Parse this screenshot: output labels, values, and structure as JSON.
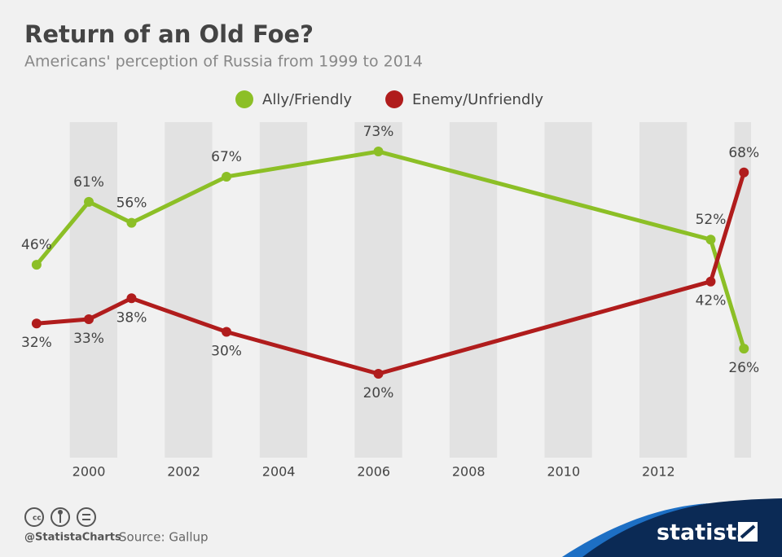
{
  "chart_data": {
    "type": "line",
    "title": "Return of an Old Foe?",
    "subtitle": "Americans' perception of Russia from 1999 to 2014",
    "x": [
      1998.9,
      2000.0,
      2000.9,
      2002.9,
      2006.1,
      2013.1,
      2013.8
    ],
    "series": [
      {
        "name": "Ally/Friendly",
        "color": "#8cbf26",
        "values": [
          46,
          61,
          56,
          67,
          73,
          52,
          26
        ],
        "value_labels": [
          "46%",
          "61%",
          "56%",
          "67%",
          "73%",
          "52%",
          "26%"
        ]
      },
      {
        "name": "Enemy/Unfriendly",
        "color": "#b01c1c",
        "values": [
          32,
          33,
          38,
          30,
          20,
          42,
          68
        ],
        "value_labels": [
          "32%",
          "33%",
          "38%",
          "30%",
          "20%",
          "42%",
          "68%"
        ]
      }
    ],
    "xlim": [
      1998.85,
      2013.95
    ],
    "xticks": [
      2000,
      2002,
      2004,
      2006,
      2008,
      2010,
      2012
    ],
    "ylim": [
      0,
      80
    ],
    "legend": "top",
    "credit": "@StatistaCharts",
    "source": "Source: Gallup",
    "brand": "statista"
  }
}
